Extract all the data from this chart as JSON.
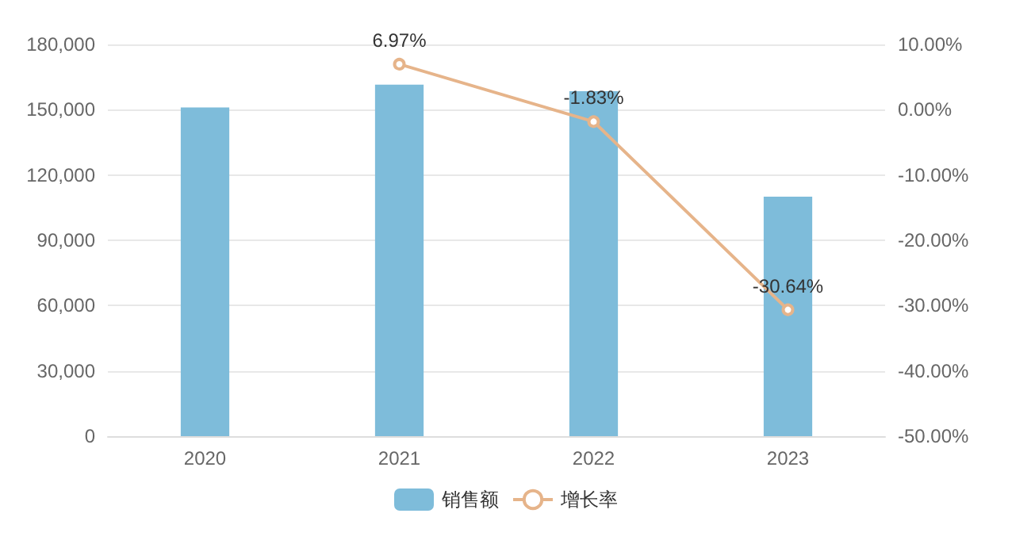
{
  "chart_data": {
    "type": "bar",
    "categories": [
      "2020",
      "2021",
      "2022",
      "2023"
    ],
    "series": [
      {
        "name": "销售额",
        "color": "#7ebcda",
        "values": [
          151000,
          161500,
          158500,
          110000
        ]
      },
      {
        "name": "增长率",
        "type": "line",
        "axis": "y2",
        "color": "#e6b48a",
        "marker": "circle",
        "values": [
          null,
          6.97,
          -1.83,
          -30.64
        ],
        "value_labels": [
          null,
          "6.97%",
          "-1.83%",
          "-30.64%"
        ]
      }
    ],
    "ylim": [
      0,
      180000
    ],
    "yticks": [
      0,
      {
        "value": 30000,
        "label": "30,000"
      },
      {
        "value": 60000,
        "label": "60,000"
      },
      {
        "value": 90000,
        "label": "90,000"
      },
      {
        "value": 120000,
        "label": "120,000"
      },
      {
        "value": 150000,
        "label": "150,000"
      },
      {
        "value": 180000,
        "label": "180,000"
      }
    ],
    "y2lim": [
      -50,
      10
    ],
    "y2ticks": [
      {
        "value": -50,
        "label": "-50.00%"
      },
      {
        "value": -40,
        "label": "-40.00%"
      },
      {
        "value": -30,
        "label": "-30.00%"
      },
      {
        "value": -20,
        "label": "-20.00%"
      },
      {
        "value": -10,
        "label": "-10.00%"
      },
      {
        "value": 0,
        "label": "0.00%"
      },
      {
        "value": 10,
        "label": "10.00%"
      }
    ],
    "grid": "y",
    "legend": "bottom"
  }
}
